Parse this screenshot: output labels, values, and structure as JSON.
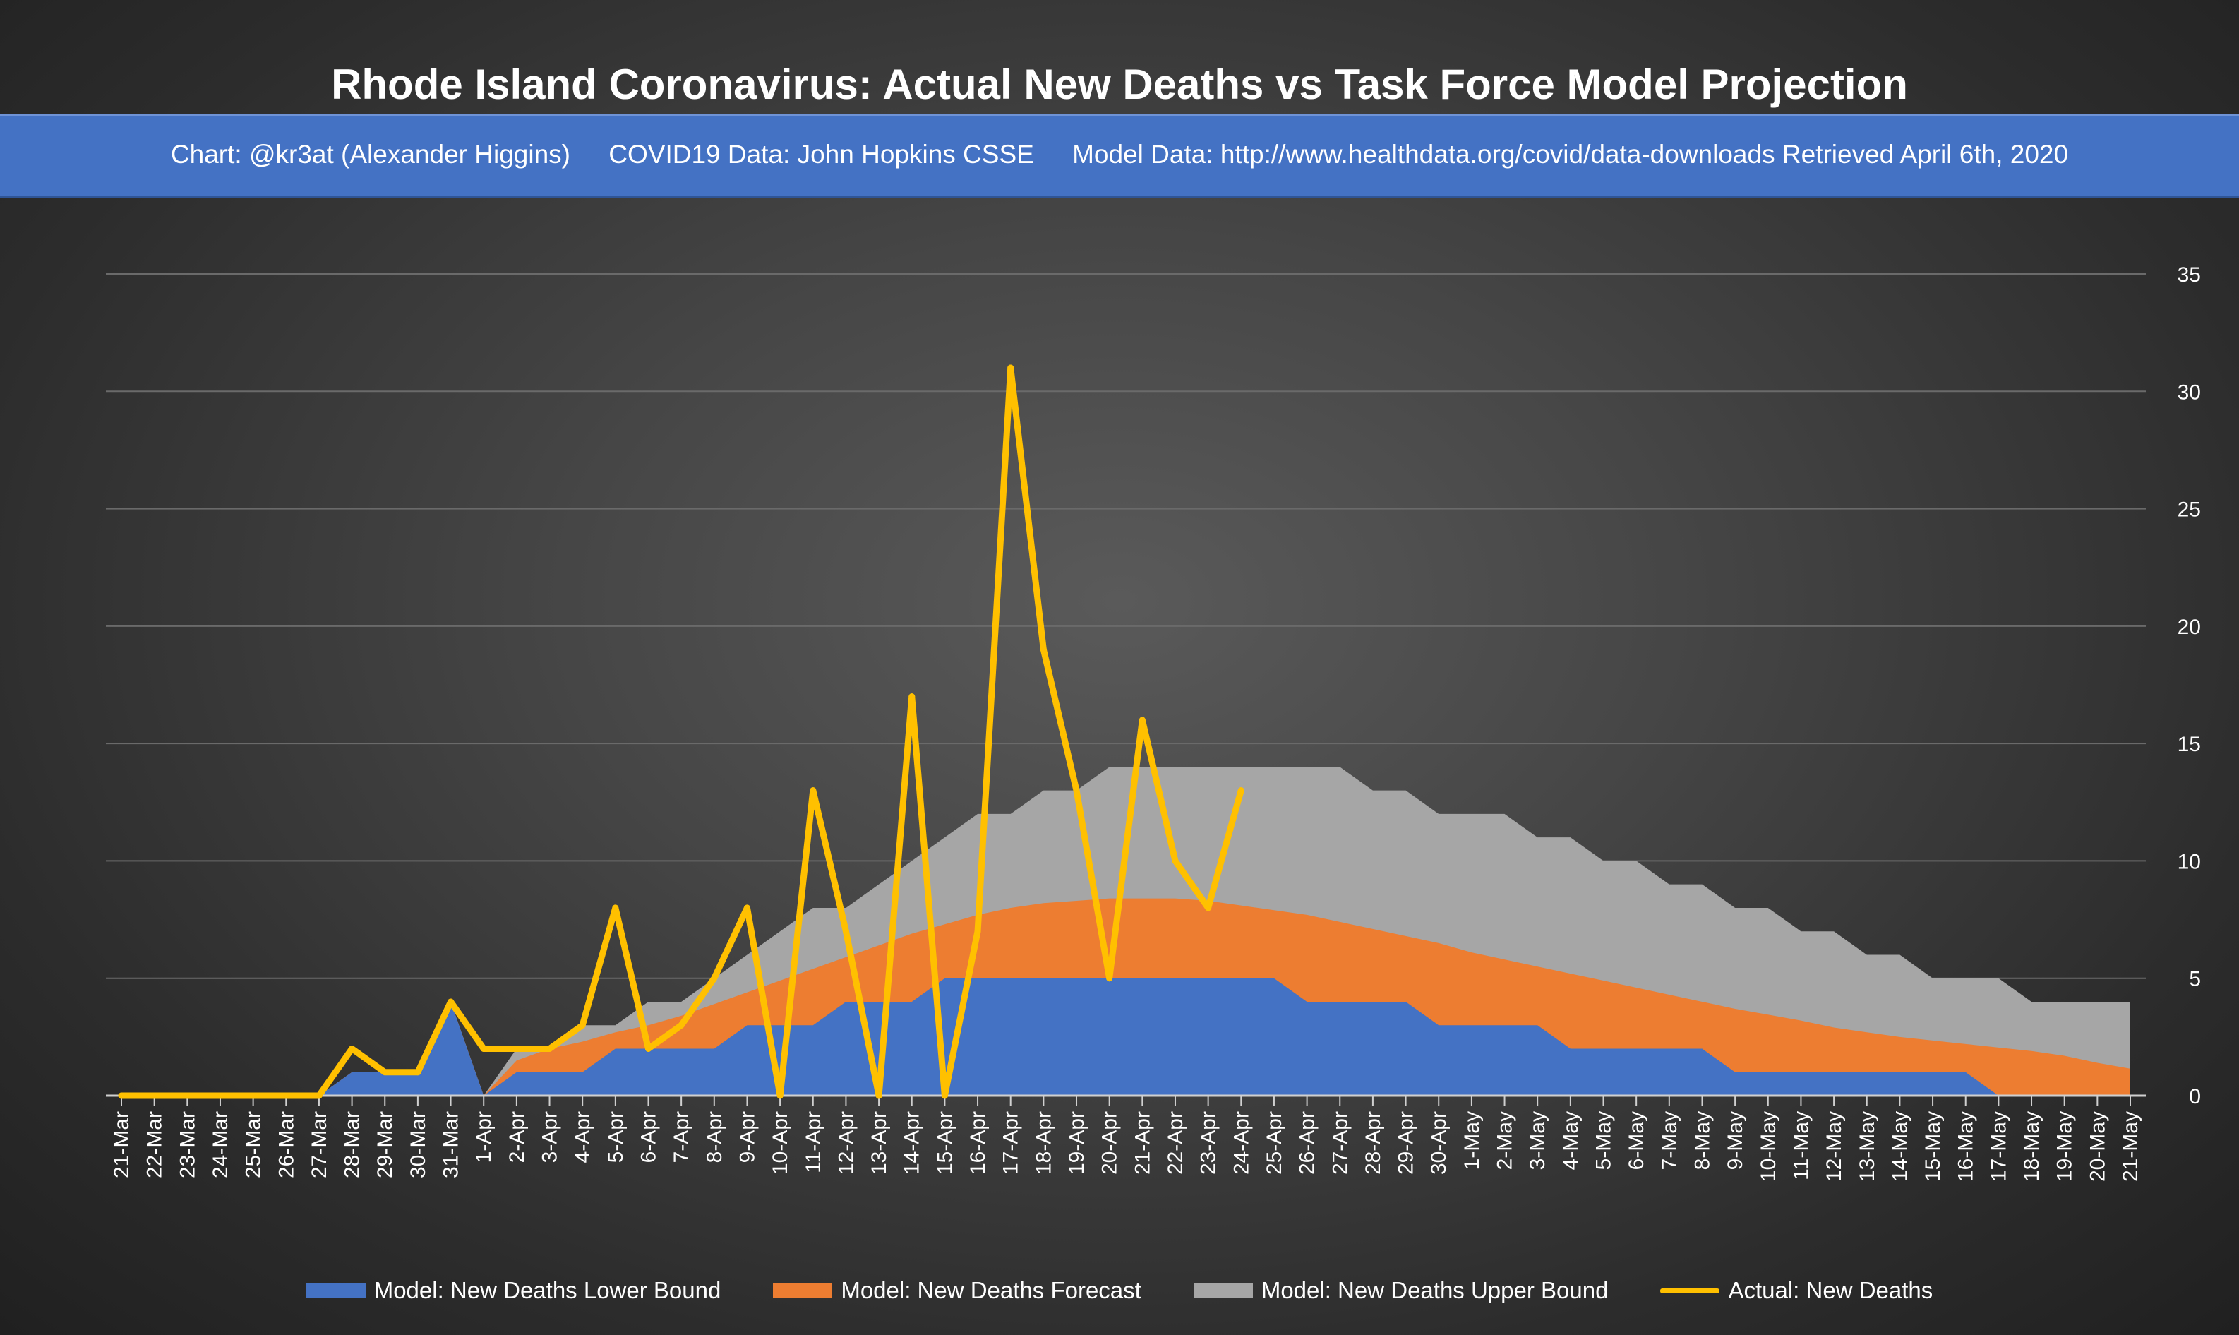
{
  "chart_data": {
    "type": "area",
    "title": "Rhode Island Coronavirus: Actual New Deaths vs Task Force Model Projection",
    "subtitle": {
      "chart_credit": "Chart: @kr3at (Alexander Higgins)",
      "covid_data": "COVID19 Data: John Hopkins CSSE",
      "model_data": "Model Data: http://www.healthdata.org/covid/data-downloads Retrieved April 6th, 2020"
    },
    "categories": [
      "21-Mar",
      "22-Mar",
      "23-Mar",
      "24-Mar",
      "25-Mar",
      "26-Mar",
      "27-Mar",
      "28-Mar",
      "29-Mar",
      "30-Mar",
      "31-Mar",
      "1-Apr",
      "2-Apr",
      "3-Apr",
      "4-Apr",
      "5-Apr",
      "6-Apr",
      "7-Apr",
      "8-Apr",
      "9-Apr",
      "10-Apr",
      "11-Apr",
      "12-Apr",
      "13-Apr",
      "14-Apr",
      "15-Apr",
      "16-Apr",
      "17-Apr",
      "18-Apr",
      "19-Apr",
      "20-Apr",
      "21-Apr",
      "22-Apr",
      "23-Apr",
      "24-Apr",
      "25-Apr",
      "26-Apr",
      "27-Apr",
      "28-Apr",
      "29-Apr",
      "30-Apr",
      "1-May",
      "2-May",
      "3-May",
      "4-May",
      "5-May",
      "6-May",
      "7-May",
      "8-May",
      "9-May",
      "10-May",
      "11-May",
      "12-May",
      "13-May",
      "14-May",
      "15-May",
      "16-May",
      "17-May",
      "18-May",
      "19-May",
      "20-May",
      "21-May"
    ],
    "series": [
      {
        "name": "Model: New Deaths Upper Bound",
        "color": "#a6a6a6",
        "values": [
          0,
          0,
          0,
          0,
          0,
          0,
          0,
          1,
          1,
          1,
          4,
          0,
          2,
          2,
          3,
          3,
          4,
          4,
          5,
          6,
          7,
          8,
          8,
          9,
          10,
          11,
          12,
          12,
          13,
          13,
          14,
          14,
          14,
          14,
          14,
          14,
          14,
          14,
          13,
          13,
          12,
          12,
          12,
          11,
          11,
          10,
          10,
          9,
          9,
          8,
          8,
          7,
          7,
          6,
          6,
          5,
          5,
          5,
          4,
          4,
          4,
          4
        ]
      },
      {
        "name": "Model: New Deaths Forecast",
        "color": "#ed7d31",
        "values": [
          0,
          0,
          0,
          0,
          0,
          0,
          0,
          1,
          1,
          1,
          4,
          0,
          1.5,
          2,
          2.3,
          2.7,
          3,
          3.4,
          3.9,
          4.4,
          4.9,
          5.4,
          5.9,
          6.4,
          6.9,
          7.3,
          7.7,
          8,
          8.2,
          8.3,
          8.4,
          8.4,
          8.4,
          8.3,
          8.1,
          7.9,
          7.7,
          7.4,
          7.1,
          6.8,
          6.5,
          6.1,
          5.8,
          5.5,
          5.2,
          4.9,
          4.6,
          4.3,
          4,
          3.7,
          3.45,
          3.2,
          2.9,
          2.7,
          2.5,
          2.35,
          2.2,
          2.05,
          1.9,
          1.7,
          1.4,
          1.15
        ]
      },
      {
        "name": "Model: New Deaths Lower Bound",
        "color": "#4472c4",
        "values": [
          0,
          0,
          0,
          0,
          0,
          0,
          0,
          1,
          1,
          1,
          4,
          0,
          1,
          1,
          1,
          2,
          2,
          2,
          2,
          3,
          3,
          3,
          4,
          4,
          4,
          5,
          5,
          5,
          5,
          5,
          5,
          5,
          5,
          5,
          5,
          5,
          4,
          4,
          4,
          4,
          3,
          3,
          3,
          3,
          2,
          2,
          2,
          2,
          2,
          1,
          1,
          1,
          1,
          1,
          1,
          1,
          1,
          0,
          0,
          0,
          0,
          0
        ]
      },
      {
        "name": "Actual: New Deaths",
        "color": "#ffc000",
        "values": [
          0,
          0,
          0,
          0,
          0,
          0,
          0,
          2,
          1,
          1,
          4,
          2,
          2,
          2,
          3,
          8,
          2,
          3,
          5,
          8,
          0,
          13,
          7,
          0,
          17,
          0,
          7,
          31,
          19,
          13,
          5,
          16,
          10,
          8,
          13,
          null,
          null,
          null,
          null,
          null,
          null,
          null,
          null,
          null,
          null,
          null,
          null,
          null,
          null,
          null,
          null,
          null,
          null,
          null,
          null,
          null,
          null,
          null,
          null,
          null,
          null,
          null
        ]
      }
    ],
    "y_ticks": [
      "0",
      "5",
      "10",
      "15",
      "20",
      "25",
      "30",
      "35"
    ],
    "ylim": [
      0,
      35
    ],
    "y_axis_side": "right",
    "grid": true,
    "legend_position": "bottom",
    "legend": [
      {
        "label": "Model: New Deaths Lower Bound",
        "color": "#4472c4",
        "kind": "area"
      },
      {
        "label": "Model: New Deaths Forecast",
        "color": "#ed7d31",
        "kind": "area"
      },
      {
        "label": "Model: New Deaths Upper Bound",
        "color": "#a6a6a6",
        "kind": "area"
      },
      {
        "label": "Actual: New Deaths",
        "color": "#ffc000",
        "kind": "line"
      }
    ]
  }
}
